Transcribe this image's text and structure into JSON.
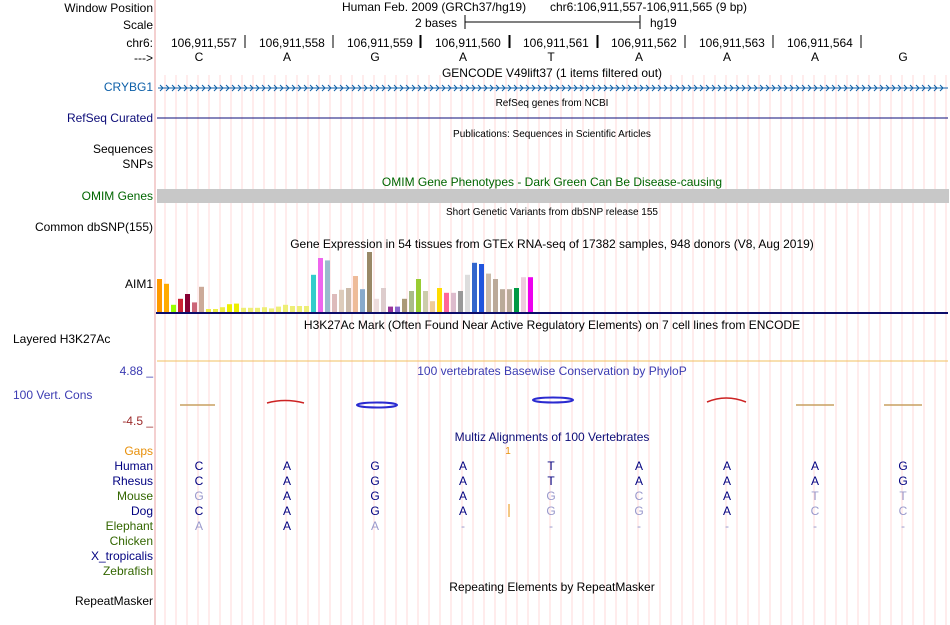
{
  "header": {
    "window_position_label": "Window Position",
    "assembly": "Human Feb. 2009 (GRCh37/hg19)",
    "position": "chr6:106,911,557-106,911,565 (9 bp)",
    "scale_label": "Scale",
    "scale_text": "2 bases",
    "scale_db": "hg19",
    "chrom_label": "chr6:",
    "coords": [
      "106,911,557",
      "106,911,558",
      "106,911,559",
      "106,911,560",
      "106,911,561",
      "106,911,562",
      "106,911,563",
      "106,911,564"
    ],
    "strand_label": "--->",
    "bases": [
      "C",
      "A",
      "G",
      "A",
      "T",
      "A",
      "A",
      "A",
      "G"
    ]
  },
  "tracks": {
    "gencode_title": "GENCODE V49lift37 (1 items filtered out)",
    "gencode_gene": "CRYBG1",
    "refseq_title": "RefSeq genes from NCBI",
    "refseq_label": "RefSeq Curated",
    "pubs_title": "Publications: Sequences in Scientific Articles",
    "sequences_label": "Sequences",
    "snps_label": "SNPs",
    "omim_title": "OMIM Gene Phenotypes - Dark Green Can Be Disease-causing",
    "omim_label": "OMIM Genes",
    "dbsnp_title": "Short Genetic Variants from dbSNP release 155",
    "dbsnp_label": "Common dbSNP(155)",
    "gtex_title": "Gene Expression in 54 tissues from GTEx RNA-seq of 17382 samples, 948 donors (V8, Aug 2019)",
    "gtex_gene": "AIM1",
    "h3k27_title": "H3K27Ac Mark (Often Found Near Active Regulatory Elements) on 7 cell lines from ENCODE",
    "h3k27_label": "Layered H3K27Ac",
    "phylop_title": "100 vertebrates Basewise Conservation by PhyloP",
    "phylop_label": "100 Vert. Cons",
    "phylop_max": "4.88 _",
    "phylop_min": "-4.5 _",
    "multiz_title": "Multiz Alignments of 100 Vertebrates",
    "gaps_label": "Gaps",
    "gap_count": "1",
    "rmsk_title": "Repeating Elements by RepeatMasker",
    "rmsk_label": "RepeatMasker"
  },
  "gtex_bars": [
    {
      "v": 0.55,
      "c": "#ff9900"
    },
    {
      "v": 0.47,
      "c": "#ffaa00"
    },
    {
      "v": 0.12,
      "c": "#99ff00"
    },
    {
      "v": 0.22,
      "c": "#cc2233"
    },
    {
      "v": 0.3,
      "c": "#880033"
    },
    {
      "v": 0.16,
      "c": "#cc6677"
    },
    {
      "v": 0.42,
      "c": "#ccaa99"
    },
    {
      "v": 0.05,
      "c": "#eeee44"
    },
    {
      "v": 0.05,
      "c": "#eeee44"
    },
    {
      "v": 0.08,
      "c": "#eeee44"
    },
    {
      "v": 0.13,
      "c": "#eeee00"
    },
    {
      "v": 0.14,
      "c": "#eeee00"
    },
    {
      "v": 0.07,
      "c": "#eeee77"
    },
    {
      "v": 0.07,
      "c": "#eeee77"
    },
    {
      "v": 0.07,
      "c": "#eeee77"
    },
    {
      "v": 0.08,
      "c": "#eeee77"
    },
    {
      "v": 0.06,
      "c": "#eeee77"
    },
    {
      "v": 0.09,
      "c": "#eeee77"
    },
    {
      "v": 0.12,
      "c": "#eeee77"
    },
    {
      "v": 0.1,
      "c": "#eeee77"
    },
    {
      "v": 0.1,
      "c": "#eeee77"
    },
    {
      "v": 0.1,
      "c": "#eeee77"
    },
    {
      "v": 0.62,
      "c": "#33cccc"
    },
    {
      "v": 0.9,
      "c": "#ee66ee"
    },
    {
      "v": 0.86,
      "c": "#99bbcc"
    },
    {
      "v": 0.3,
      "c": "#ddbbbb"
    },
    {
      "v": 0.37,
      "c": "#ddccbb"
    },
    {
      "v": 0.4,
      "c": "#ccbbaa"
    },
    {
      "v": 0.6,
      "c": "#eebb99"
    },
    {
      "v": 0.38,
      "c": "#88aacc"
    },
    {
      "v": 1.0,
      "c": "#998866"
    },
    {
      "v": 0.22,
      "c": "#eedddd"
    },
    {
      "v": 0.4,
      "c": "#ddcccc"
    },
    {
      "v": 0.09,
      "c": "#993399"
    },
    {
      "v": 0.09,
      "c": "#8866cc"
    },
    {
      "v": 0.22,
      "c": "#aa9977"
    },
    {
      "v": 0.35,
      "c": "#aabb88"
    },
    {
      "v": 0.55,
      "c": "#99cc33"
    },
    {
      "v": 0.35,
      "c": "#ccccaa"
    },
    {
      "v": 0.18,
      "c": "#eecc99"
    },
    {
      "v": 0.4,
      "c": "#ffdd00"
    },
    {
      "v": 0.32,
      "c": "#ff6699"
    },
    {
      "v": 0.32,
      "c": "#ddbbcc"
    },
    {
      "v": 0.35,
      "c": "#999999"
    },
    {
      "v": 0.62,
      "c": "#dddddd"
    },
    {
      "v": 0.82,
      "c": "#3366cc"
    },
    {
      "v": 0.8,
      "c": "#2255dd"
    },
    {
      "v": 0.64,
      "c": "#ccbbaa"
    },
    {
      "v": 0.55,
      "c": "#bbaa99"
    },
    {
      "v": 0.38,
      "c": "#bbaa99"
    },
    {
      "v": 0.38,
      "c": "#bbaa99"
    },
    {
      "v": 0.4,
      "c": "#009944"
    },
    {
      "v": 0.58,
      "c": "#eeccdd"
    },
    {
      "v": 0.58,
      "c": "#ee00ee"
    }
  ],
  "species": [
    {
      "name": "Human",
      "color": "#000080",
      "seq": [
        {
          "b": "C",
          "c": "#000080"
        },
        {
          "b": "A",
          "c": "#000080"
        },
        {
          "b": "G",
          "c": "#000080"
        },
        {
          "b": "A",
          "c": "#000080"
        },
        {
          "b": "T",
          "c": "#000080"
        },
        {
          "b": "A",
          "c": "#000080"
        },
        {
          "b": "A",
          "c": "#000080"
        },
        {
          "b": "A",
          "c": "#000080"
        },
        {
          "b": "G",
          "c": "#000080"
        }
      ]
    },
    {
      "name": "Rhesus",
      "color": "#000080",
      "seq": [
        {
          "b": "C",
          "c": "#000080"
        },
        {
          "b": "A",
          "c": "#000080"
        },
        {
          "b": "G",
          "c": "#000080"
        },
        {
          "b": "A",
          "c": "#000080"
        },
        {
          "b": "T",
          "c": "#000080"
        },
        {
          "b": "A",
          "c": "#000080"
        },
        {
          "b": "A",
          "c": "#000080"
        },
        {
          "b": "A",
          "c": "#000080"
        },
        {
          "b": "G",
          "c": "#000080"
        }
      ]
    },
    {
      "name": "Mouse",
      "color": "#336600",
      "seq": [
        {
          "b": "G",
          "c": "#9999cc"
        },
        {
          "b": "A",
          "c": "#000080"
        },
        {
          "b": "G",
          "c": "#000080"
        },
        {
          "b": "A",
          "c": "#000080"
        },
        {
          "b": "G",
          "c": "#9999cc"
        },
        {
          "b": "C",
          "c": "#9999cc"
        },
        {
          "b": "A",
          "c": "#000080"
        },
        {
          "b": "T",
          "c": "#9999cc"
        },
        {
          "b": "T",
          "c": "#9999cc"
        }
      ]
    },
    {
      "name": "Dog",
      "color": "#000080",
      "seq": [
        {
          "b": "C",
          "c": "#000080"
        },
        {
          "b": "A",
          "c": "#000080"
        },
        {
          "b": "G",
          "c": "#000080"
        },
        {
          "b": "A",
          "c": "#000080"
        },
        {
          "b": "G",
          "c": "#9999cc"
        },
        {
          "b": "G",
          "c": "#9999cc"
        },
        {
          "b": "A",
          "c": "#000080"
        },
        {
          "b": "C",
          "c": "#9999cc"
        },
        {
          "b": "C",
          "c": "#9999cc"
        }
      ]
    },
    {
      "name": "Elephant",
      "color": "#336600",
      "seq": [
        {
          "b": "A",
          "c": "#9999cc"
        },
        {
          "b": "A",
          "c": "#000080"
        },
        {
          "b": "A",
          "c": "#9999cc"
        },
        {
          "b": "-",
          "c": "#9999cc"
        },
        {
          "b": "-",
          "c": "#9999cc"
        },
        {
          "b": "-",
          "c": "#9999cc"
        },
        {
          "b": "-",
          "c": "#9999cc"
        },
        {
          "b": "-",
          "c": "#9999cc"
        },
        {
          "b": "-",
          "c": "#9999cc"
        }
      ]
    },
    {
      "name": "Chicken",
      "color": "#336600",
      "seq": []
    },
    {
      "name": "X_tropicalis",
      "color": "#000080",
      "seq": []
    },
    {
      "name": "Zebrafish",
      "color": "#336600",
      "seq": []
    }
  ],
  "colors": {
    "gencode": "#0c5fa8",
    "refseq": "#0c0c78",
    "omim": "#006600",
    "omim_bar": "#c8c8c8",
    "phylop": "#3b3bb2",
    "phylop_min": "#9c2b2b",
    "gaps": "#e8900a",
    "grid": "#ffdada",
    "divider": "#e8a0a0"
  }
}
